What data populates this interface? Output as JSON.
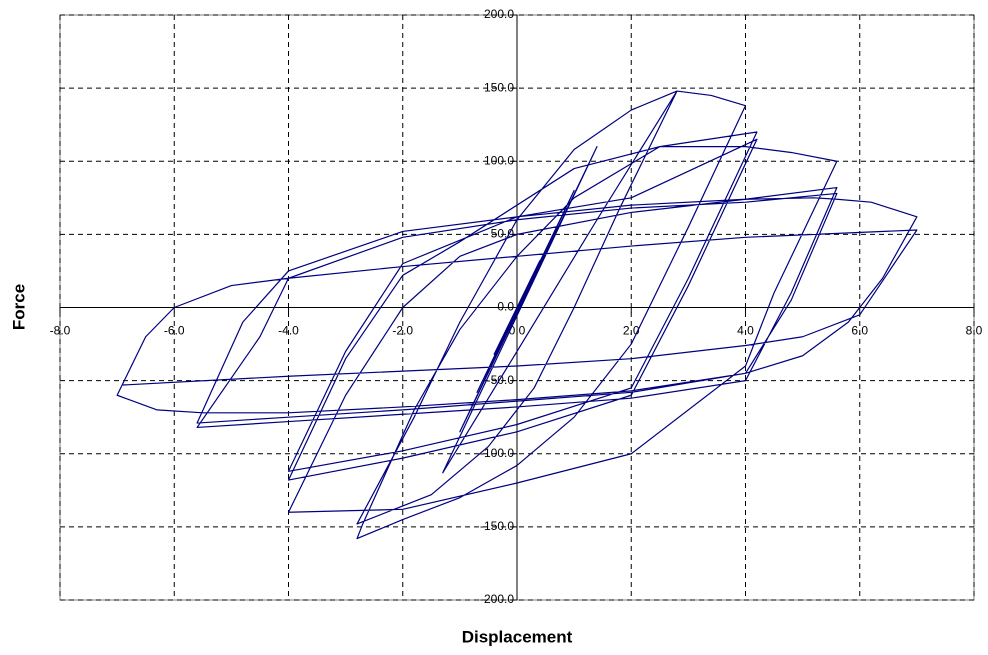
{
  "chart_data": {
    "type": "line",
    "x_label": "Displacement",
    "y_label": "Force",
    "xlim": [
      -8,
      8
    ],
    "ylim": [
      -200,
      200
    ],
    "xticks": [
      {
        "value": -8,
        "label": "-8.0"
      },
      {
        "value": -6,
        "label": "-6.0"
      },
      {
        "value": -4,
        "label": "-4.0"
      },
      {
        "value": -2,
        "label": "-2.0"
      },
      {
        "value": 0,
        "label": "0.0"
      },
      {
        "value": 2,
        "label": "2.0"
      },
      {
        "value": 4,
        "label": "4.0"
      },
      {
        "value": 6,
        "label": "6.0"
      },
      {
        "value": 8,
        "label": "8.0"
      }
    ],
    "yticks": [
      {
        "value": -200,
        "label": "-200.0"
      },
      {
        "value": -150,
        "label": "-150.0"
      },
      {
        "value": -100,
        "label": "-100.0"
      },
      {
        "value": -50,
        "label": "-50.0"
      },
      {
        "value": 0,
        "label": "0.0"
      },
      {
        "value": 50,
        "label": "50.0"
      },
      {
        "value": 100,
        "label": "100.0"
      },
      {
        "value": 150,
        "label": "150.0"
      },
      {
        "value": 200,
        "label": "200.0"
      }
    ],
    "grid": true,
    "color": "#000080",
    "x": [
      0,
      0.4,
      -0.4,
      0.7,
      -0.7,
      1.0,
      -1.0,
      1.4,
      -1.3,
      0,
      1.4,
      2.8,
      1.8,
      1.0,
      0.3,
      -0.5,
      -1.5,
      -2.8,
      -1.8,
      -1.0,
      0,
      1.0,
      2.0,
      2.8,
      3.4,
      4.0,
      3.0,
      2.0,
      1.0,
      0,
      -1.0,
      -2.0,
      -2.8,
      -2.7,
      -1.8,
      -1.0,
      0,
      1.0,
      2.5,
      4.2,
      3.0,
      2.0,
      0,
      -2.0,
      -4.0,
      -3.0,
      -2.0,
      0,
      2.0,
      4.2,
      3.0,
      2.0,
      0,
      -2.0,
      -4.0,
      -3.0,
      -2.0,
      -1.0,
      1.0,
      2.5,
      4.0,
      4.8,
      5.6,
      4.5,
      4.0,
      2.0,
      0,
      -2.0,
      -4.0,
      -3.0,
      -2.0,
      -1.0,
      0,
      2.0,
      4.0,
      5.6,
      4.8,
      4.0,
      2.0,
      0,
      -2.0,
      -4.0,
      -5.6,
      -4.5,
      -4.0,
      -2.0,
      0,
      2.0,
      4.0,
      5.6,
      4.8,
      4.0,
      2.0,
      0,
      -2.0,
      -4.0,
      -5.6,
      -4.8,
      -4.0,
      -2.0,
      0,
      2.0,
      4.0,
      5.2,
      5.6,
      6.2,
      7.0,
      6.4,
      5.8,
      5.0,
      4.0,
      2.0,
      0,
      -2.0,
      -4.0,
      -5.5,
      -6.3,
      -7.0,
      -6.5,
      -6.0,
      -5.0,
      -4.0,
      -2.0,
      0,
      2.0,
      4.0,
      7.0,
      6.0,
      5.0,
      4.0,
      2.0,
      0,
      -4.0,
      -6.9
    ],
    "values": [
      0,
      32,
      -32,
      55,
      -58,
      80,
      -85,
      110,
      -113,
      -30,
      60,
      148,
      68,
      0,
      -55,
      -95,
      -128,
      -148,
      -75,
      -10,
      60,
      108,
      135,
      148,
      145,
      138,
      55,
      -25,
      -75,
      -108,
      -130,
      -145,
      -158,
      -148,
      -70,
      -15,
      35,
      75,
      110,
      120,
      20,
      -55,
      -80,
      -98,
      -112,
      -30,
      30,
      62,
      75,
      115,
      15,
      -60,
      -85,
      -103,
      -118,
      -35,
      22,
      45,
      95,
      110,
      110,
      106,
      100,
      10,
      -40,
      -100,
      -120,
      -138,
      -140,
      -60,
      0,
      35,
      50,
      65,
      74,
      82,
      10,
      -50,
      -62,
      -68,
      -73,
      -78,
      -82,
      -20,
      20,
      48,
      60,
      68,
      72,
      78,
      5,
      -45,
      -58,
      -64,
      -70,
      -75,
      -79,
      -10,
      25,
      52,
      62,
      70,
      74,
      75,
      74,
      72,
      62,
      20,
      -10,
      -33,
      -45,
      -57,
      -63,
      -68,
      -72,
      -72,
      -70,
      -60,
      -20,
      0,
      15,
      20,
      28,
      35,
      42,
      48,
      53,
      -5,
      -20,
      -26,
      -35,
      -40,
      -47,
      -53
    ]
  }
}
